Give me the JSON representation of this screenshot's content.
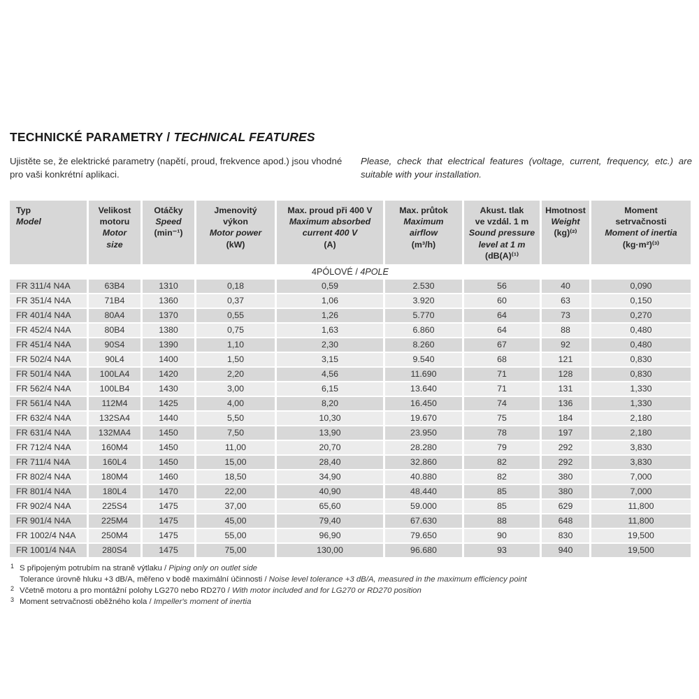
{
  "title": {
    "cz": "TECHNICKÉ PARAMETRY",
    "sep": " / ",
    "en": "TECHNICAL FEATURES"
  },
  "intro": {
    "cz": "Ujistěte se, že elektrické parametry (napětí, proud, frekvence apod.) jsou vhodné pro vaši konkrétní aplikaci.",
    "en": "Please, check that electrical features (voltage, current, frequency, etc.) are suitable with your installation."
  },
  "table": {
    "columns": [
      {
        "cz": "Typ",
        "en": "Model",
        "unit": ""
      },
      {
        "cz": "Velikost\nmotoru",
        "en": "Motor\nsize",
        "unit": ""
      },
      {
        "cz": "Otáčky",
        "en": "Speed",
        "unit": "(min⁻¹)"
      },
      {
        "cz": "Jmenovitý\nvýkon",
        "en": "Motor power",
        "unit": "(kW)"
      },
      {
        "cz": "Max. proud při 400 V",
        "en": "Maximum absorbed\ncurrent 400 V",
        "unit": "(A)"
      },
      {
        "cz": "Max. průtok",
        "en": "Maximum\nairflow",
        "unit": "(m³/h)"
      },
      {
        "cz": "Akust. tlak\nve vzdál. 1 m",
        "en": "Sound pressure\nlevel at 1 m",
        "unit": "(dB(A)⁽¹⁾"
      },
      {
        "cz": "Hmotnost",
        "en": "Weight",
        "unit": "(kg)⁽²⁾"
      },
      {
        "cz": "Moment\nsetrvačnosti",
        "en": "Moment of inertia",
        "unit": "(kg·m²)⁽³⁾"
      }
    ],
    "section": {
      "cz": "4PÓLOVÉ",
      "sep": " / ",
      "en": "4POLE"
    },
    "rows": [
      [
        "FR 311/4 N4A",
        "63B4",
        "1310",
        "0,18",
        "0,59",
        "2.530",
        "56",
        "40",
        "0,090"
      ],
      [
        "FR 351/4 N4A",
        "71B4",
        "1360",
        "0,37",
        "1,06",
        "3.920",
        "60",
        "63",
        "0,150"
      ],
      [
        "FR 401/4 N4A",
        "80A4",
        "1370",
        "0,55",
        "1,26",
        "5.770",
        "64",
        "73",
        "0,270"
      ],
      [
        "FR 452/4 N4A",
        "80B4",
        "1380",
        "0,75",
        "1,63",
        "6.860",
        "64",
        "88",
        "0,480"
      ],
      [
        "FR 451/4 N4A",
        "90S4",
        "1390",
        "1,10",
        "2,30",
        "8.260",
        "67",
        "92",
        "0,480"
      ],
      [
        "FR 502/4 N4A",
        "90L4",
        "1400",
        "1,50",
        "3,15",
        "9.540",
        "68",
        "121",
        "0,830"
      ],
      [
        "FR 501/4 N4A",
        "100LA4",
        "1420",
        "2,20",
        "4,56",
        "11.690",
        "71",
        "128",
        "0,830"
      ],
      [
        "FR 562/4 N4A",
        "100LB4",
        "1430",
        "3,00",
        "6,15",
        "13.640",
        "71",
        "131",
        "1,330"
      ],
      [
        "FR 561/4 N4A",
        "112M4",
        "1425",
        "4,00",
        "8,20",
        "16.450",
        "74",
        "136",
        "1,330"
      ],
      [
        "FR 632/4 N4A",
        "132SA4",
        "1440",
        "5,50",
        "10,30",
        "19.670",
        "75",
        "184",
        "2,180"
      ],
      [
        "FR 631/4 N4A",
        "132MA4",
        "1450",
        "7,50",
        "13,90",
        "23.950",
        "78",
        "197",
        "2,180"
      ],
      [
        "FR 712/4 N4A",
        "160M4",
        "1450",
        "11,00",
        "20,70",
        "28.280",
        "79",
        "292",
        "3,830"
      ],
      [
        "FR 711/4 N4A",
        "160L4",
        "1450",
        "15,00",
        "28,40",
        "32.860",
        "82",
        "292",
        "3,830"
      ],
      [
        "FR 802/4 N4A",
        "180M4",
        "1460",
        "18,50",
        "34,90",
        "40.880",
        "82",
        "380",
        "7,000"
      ],
      [
        "FR 801/4 N4A",
        "180L4",
        "1470",
        "22,00",
        "40,90",
        "48.440",
        "85",
        "380",
        "7,000"
      ],
      [
        "FR 902/4 N4A",
        "225S4",
        "1475",
        "37,00",
        "65,60",
        "59.000",
        "85",
        "629",
        "11,800"
      ],
      [
        "FR 901/4 N4A",
        "225M4",
        "1475",
        "45,00",
        "79,40",
        "67.630",
        "88",
        "648",
        "11,800"
      ],
      [
        "FR 1002/4 N4A",
        "250M4",
        "1475",
        "55,00",
        "96,90",
        "79.650",
        "90",
        "830",
        "19,500"
      ],
      [
        "FR 1001/4 N4A",
        "280S4",
        "1475",
        "75,00",
        "130,00",
        "96.680",
        "93",
        "940",
        "19,500"
      ]
    ]
  },
  "footnotes": [
    {
      "sup": "1",
      "cz": "S připojeným potrubím na straně výtlaku",
      "sep": " / ",
      "en": "Piping only on outlet side"
    },
    {
      "sup": "",
      "cz": "Tolerance úrovně hluku +3 dB/A, měřeno v bodě maximální účinnosti",
      "sep": " / ",
      "en": "Noise level tolerance +3 dB/A, measured in the maximum efficiency point"
    },
    {
      "sup": "2",
      "cz": "Včetně motoru a pro montážní polohy LG270 nebo RD270",
      "sep": " / ",
      "en": "With motor included and for LG270 or RD270 position"
    },
    {
      "sup": "3",
      "cz": "Moment setrvačnosti oběžného kola",
      "sep": " / ",
      "en": "Impeller's moment of inertia"
    }
  ]
}
